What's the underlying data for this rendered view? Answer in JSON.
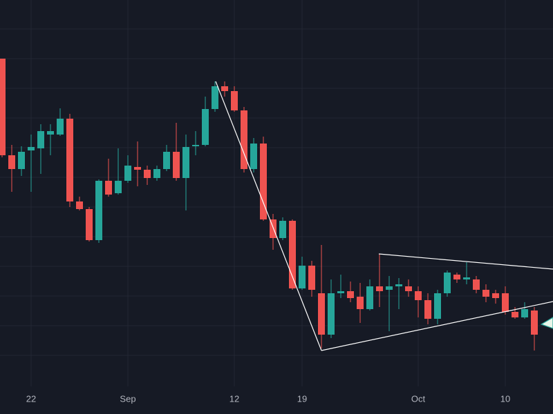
{
  "chart_data": {
    "type": "candlestick",
    "categories": [
      null,
      null,
      null,
      "22",
      null,
      null,
      null,
      null,
      null,
      null,
      null,
      null,
      null,
      "Sep",
      null,
      null,
      null,
      null,
      null,
      null,
      null,
      null,
      null,
      null,
      "12",
      null,
      null,
      null,
      null,
      null,
      null,
      "19",
      null,
      null,
      null,
      null,
      null,
      null,
      null,
      null,
      null,
      null,
      null,
      "Oct",
      null,
      null,
      null,
      null,
      null,
      null,
      null,
      null,
      "10",
      null,
      null,
      null
    ],
    "open": [
      475,
      335,
      315,
      342,
      345,
      365,
      365,
      388,
      268,
      257,
      212,
      298,
      280,
      298,
      318,
      314,
      302,
      315,
      340,
      302,
      348,
      350,
      402,
      435,
      428,
      400,
      315,
      352,
      242,
      215,
      240,
      142,
      175,
      135,
      75,
      135,
      138,
      130,
      112,
      145,
      140,
      145,
      145,
      138,
      125,
      98,
      135,
      162,
      155,
      155,
      140,
      135,
      135,
      108,
      100,
      110
    ],
    "high": [
      475,
      350,
      348,
      365,
      380,
      380,
      403,
      395,
      275,
      260,
      300,
      330,
      345,
      335,
      355,
      320,
      320,
      350,
      382,
      365,
      370,
      420,
      442,
      442,
      435,
      405,
      360,
      362,
      250,
      245,
      242,
      188,
      182,
      205,
      155,
      162,
      152,
      150,
      155,
      192,
      160,
      157,
      155,
      145,
      135,
      140,
      168,
      165,
      180,
      160,
      148,
      140,
      145,
      115,
      122,
      115
    ],
    "low": [
      332,
      282,
      305,
      282,
      308,
      335,
      363,
      260,
      255,
      210,
      208,
      275,
      278,
      295,
      290,
      292,
      298,
      312,
      298,
      255,
      335,
      348,
      398,
      420,
      398,
      310,
      310,
      240,
      198,
      212,
      140,
      140,
      130,
      55,
      70,
      128,
      122,
      92,
      110,
      115,
      80,
      112,
      130,
      100,
      90,
      90,
      130,
      150,
      148,
      135,
      122,
      120,
      104,
      98,
      98,
      52
    ],
    "close": [
      335,
      315,
      340,
      347,
      370,
      370,
      388,
      268,
      257,
      212,
      298,
      278,
      298,
      320,
      314,
      302,
      315,
      340,
      302,
      347,
      350,
      402,
      435,
      428,
      400,
      315,
      352,
      242,
      215,
      240,
      142,
      175,
      140,
      75,
      135,
      138,
      128,
      112,
      145,
      138,
      145,
      148,
      138,
      125,
      98,
      135,
      165,
      155,
      158,
      140,
      130,
      128,
      108,
      100,
      112,
      75
    ],
    "up_color": "#26a69a",
    "down_color": "#ef5350",
    "ylim": [
      0,
      560
    ],
    "ygrid": [
      518,
      475,
      432,
      389,
      346,
      303,
      260,
      217,
      174,
      131,
      88,
      45
    ]
  }
}
